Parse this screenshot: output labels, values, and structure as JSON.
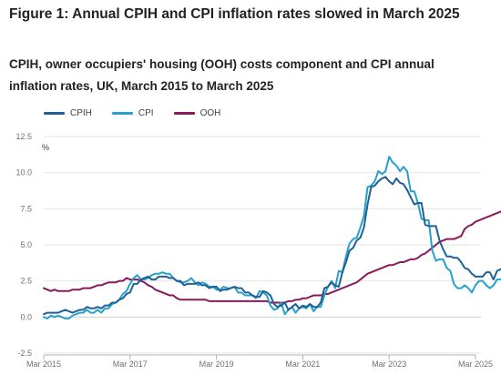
{
  "header": {
    "title": "Figure 1: Annual CPIH and CPI inflation rates slowed in March 2025",
    "subtitle": "CPIH, owner occupiers' housing (OOH) costs component and CPI annual inflation rates, UK, March 2015 to March 2025"
  },
  "chart_data": {
    "type": "line",
    "title": "Figure 1: Annual CPIH and CPI inflation rates slowed in March 2025",
    "subtitle": "CPIH, owner occupiers' housing (OOH) costs component and CPI annual inflation rates, UK, March 2015 to March 2025",
    "xlabel": "",
    "ylabel": "%",
    "ylim": [
      -2.5,
      12.5
    ],
    "yticks": [
      -2.5,
      0.0,
      2.5,
      5.0,
      7.5,
      10.0,
      12.5
    ],
    "ytick_labels": [
      "-2.5",
      "0.0",
      "2.5",
      "5.0",
      "7.5",
      "10.0",
      "12.5"
    ],
    "xticks": [
      "Mar 2015",
      "Mar 2017",
      "Mar 2019",
      "Mar 2021",
      "Mar 2023",
      "Mar 2025"
    ],
    "grid": true,
    "legend_position": "top-left",
    "x_start": "Mar 2015",
    "x_frequency": "monthly",
    "series": [
      {
        "name": "CPIH",
        "color": "#206095",
        "values": [
          0.2,
          0.3,
          0.3,
          0.3,
          0.3,
          0.4,
          0.5,
          0.4,
          0.3,
          0.4,
          0.5,
          0.5,
          0.7,
          0.6,
          0.6,
          0.7,
          0.6,
          0.8,
          0.8,
          1.0,
          1.0,
          1.2,
          1.3,
          1.6,
          1.7,
          2.3,
          2.3,
          2.6,
          2.7,
          2.8,
          2.6,
          2.6,
          2.8,
          2.8,
          2.8,
          2.7,
          2.7,
          2.5,
          2.5,
          2.2,
          2.3,
          2.3,
          2.3,
          2.4,
          2.2,
          2.2,
          2.0,
          2.1,
          2.1,
          1.8,
          1.9,
          1.9,
          2.0,
          2.1,
          2.0,
          2.0,
          1.7,
          1.7,
          1.5,
          1.4,
          1.4,
          1.8,
          1.7,
          1.5,
          0.9,
          0.7,
          0.8,
          1.0,
          0.5,
          0.7,
          0.9,
          0.6,
          0.8,
          0.7,
          0.9,
          0.7,
          0.7,
          1.0,
          2.0,
          2.1,
          2.4,
          2.2,
          2.1,
          3.1,
          3.8,
          4.6,
          4.8,
          5.3,
          5.5,
          6.2,
          7.8,
          9.0,
          9.1,
          9.4,
          9.6,
          9.7,
          9.4,
          9.2,
          9.6,
          9.3,
          9.2,
          8.8,
          8.3,
          7.8,
          7.9,
          7.9,
          6.4,
          6.3,
          6.3,
          6.3,
          5.3,
          4.7,
          4.2,
          4.2,
          4.1,
          4.1,
          3.8,
          3.4,
          3.3,
          3.0,
          2.8,
          2.8,
          2.8,
          3.1,
          3.1,
          2.6,
          3.2,
          3.3,
          3.5,
          3.6,
          3.9,
          3.8,
          3.7,
          3.4
        ]
      },
      {
        "name": "CPI",
        "color": "#27a0cc",
        "values": [
          0.0,
          -0.1,
          0.1,
          0.0,
          0.1,
          0.0,
          -0.1,
          -0.1,
          0.1,
          0.2,
          0.3,
          0.3,
          0.5,
          0.3,
          0.3,
          0.5,
          0.3,
          0.6,
          0.6,
          0.9,
          1.0,
          1.2,
          1.6,
          1.8,
          2.3,
          2.7,
          2.9,
          2.6,
          2.6,
          2.7,
          2.9,
          3.0,
          3.0,
          3.1,
          3.0,
          3.0,
          2.7,
          2.5,
          2.4,
          2.4,
          2.5,
          2.7,
          2.4,
          2.2,
          2.4,
          2.3,
          2.1,
          2.1,
          1.9,
          1.9,
          2.1,
          2.0,
          2.0,
          2.1,
          1.7,
          1.7,
          1.5,
          1.5,
          1.5,
          1.3,
          1.8,
          1.7,
          1.5,
          0.8,
          0.5,
          0.6,
          1.0,
          0.2,
          0.5,
          0.7,
          0.3,
          0.6,
          0.7,
          0.6,
          0.9,
          0.4,
          0.7,
          0.7,
          1.5,
          2.1,
          2.5,
          2.0,
          3.2,
          3.1,
          4.2,
          5.1,
          5.4,
          5.5,
          6.2,
          7.0,
          9.0,
          9.1,
          9.4,
          10.1,
          9.9,
          10.1,
          11.1,
          10.7,
          10.5,
          10.1,
          10.4,
          10.1,
          8.7,
          8.7,
          7.9,
          6.8,
          6.7,
          6.7,
          4.6,
          3.9,
          4.0,
          4.0,
          3.4,
          3.2,
          2.3,
          2.0,
          2.0,
          2.2,
          2.0,
          1.7,
          2.2,
          2.5,
          2.5,
          2.2,
          2.0,
          2.2,
          2.6,
          2.6,
          2.8,
          2.3,
          1.7,
          2.6,
          3.0,
          3.0,
          2.8,
          2.6
        ]
      },
      {
        "name": "OOH",
        "color": "#871a5b",
        "values": [
          2.0,
          1.9,
          1.8,
          1.9,
          1.8,
          1.8,
          1.8,
          1.8,
          1.9,
          1.9,
          1.9,
          2.0,
          2.0,
          2.0,
          2.1,
          2.2,
          2.2,
          2.3,
          2.4,
          2.4,
          2.4,
          2.5,
          2.5,
          2.7,
          2.6,
          2.6,
          2.6,
          2.5,
          2.4,
          2.2,
          2.1,
          1.9,
          1.8,
          1.7,
          1.6,
          1.5,
          1.5,
          1.3,
          1.2,
          1.2,
          1.2,
          1.2,
          1.2,
          1.2,
          1.2,
          1.2,
          1.1,
          1.1,
          1.1,
          1.1,
          1.1,
          1.1,
          1.1,
          1.1,
          1.1,
          1.1,
          1.1,
          1.1,
          1.1,
          1.1,
          1.1,
          1.1,
          1.1,
          1.0,
          1.0,
          1.0,
          1.0,
          1.0,
          1.1,
          1.1,
          1.2,
          1.2,
          1.3,
          1.3,
          1.4,
          1.5,
          1.5,
          1.5,
          1.6,
          1.6,
          1.7,
          1.8,
          1.9,
          2.0,
          2.1,
          2.2,
          2.3,
          2.4,
          2.6,
          2.8,
          3.0,
          3.1,
          3.2,
          3.3,
          3.4,
          3.5,
          3.6,
          3.6,
          3.7,
          3.8,
          3.8,
          3.9,
          4.0,
          4.0,
          4.1,
          4.3,
          4.4,
          4.6,
          4.8,
          5.0,
          5.2,
          5.3,
          5.4,
          5.4,
          5.4,
          5.5,
          5.6,
          6.1,
          6.3,
          6.4,
          6.6,
          6.7,
          6.8,
          6.9,
          7.0,
          7.1,
          7.2,
          7.3,
          7.5,
          7.7,
          7.9,
          8.0,
          8.0,
          7.6,
          7.3
        ]
      }
    ]
  }
}
